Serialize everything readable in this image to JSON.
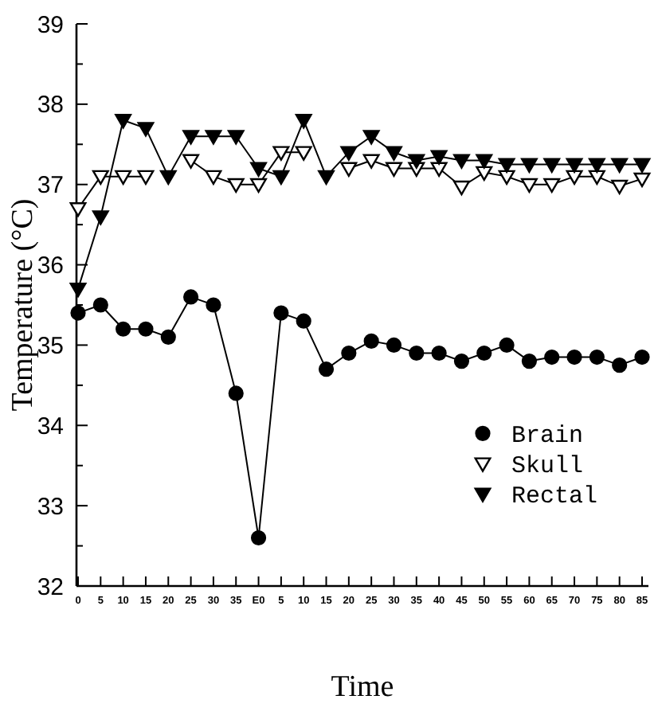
{
  "chart_data": {
    "type": "line",
    "xlabel": "Time",
    "ylabel": "Temperature (°C)",
    "categories": [
      "0",
      "5",
      "10",
      "15",
      "20",
      "25",
      "30",
      "35",
      "E0",
      "5",
      "10",
      "15",
      "20",
      "25",
      "30",
      "35",
      "40",
      "45",
      "50",
      "55",
      "60",
      "65",
      "70",
      "75",
      "80",
      "85"
    ],
    "ylim": [
      32,
      39
    ],
    "yticks": [
      32,
      {
        "value": 32.5,
        "label": null
      },
      33,
      {
        "value": 33.5,
        "label": null
      },
      34,
      {
        "value": 34.5,
        "label": null
      },
      35,
      {
        "value": 35.5,
        "label": null
      },
      36,
      {
        "value": 36.5,
        "label": null
      },
      37,
      {
        "value": 37.5,
        "label": null
      },
      38,
      {
        "value": 38.5,
        "label": null
      },
      39
    ],
    "legend": "bottom right",
    "grid": false,
    "line_style": "solid",
    "series": [
      {
        "name": "Brain",
        "color": "#000000",
        "marker": "circle",
        "values": [
          35.4,
          35.5,
          35.2,
          35.2,
          35.1,
          35.6,
          35.5,
          34.4,
          32.6,
          35.4,
          35.3,
          34.7,
          34.9,
          35.05,
          35.0,
          34.9,
          34.9,
          34.8,
          34.9,
          35.0,
          34.8,
          34.85,
          34.85,
          34.85,
          34.75,
          34.85
        ]
      },
      {
        "name": "Skull",
        "color": "#ffffff",
        "marker": "triangle",
        "values": [
          36.7,
          37.1,
          37.1,
          37.1,
          null,
          37.3,
          37.1,
          37.0,
          37.0,
          37.4,
          37.4,
          null,
          37.2,
          37.3,
          37.2,
          37.2,
          37.2,
          36.97,
          37.15,
          37.1,
          37.0,
          37.0,
          37.1,
          37.1,
          36.98,
          37.07
        ]
      },
      {
        "name": "Rectal",
        "color": "#000000",
        "marker": "triangle",
        "values": [
          35.7,
          36.6,
          37.8,
          37.7,
          37.1,
          37.6,
          37.6,
          37.6,
          37.2,
          37.1,
          37.8,
          37.1,
          37.4,
          37.6,
          37.4,
          37.3,
          37.35,
          37.3,
          37.3,
          37.25,
          37.25,
          37.25,
          37.25,
          37.25,
          37.25,
          37.25
        ]
      }
    ]
  }
}
